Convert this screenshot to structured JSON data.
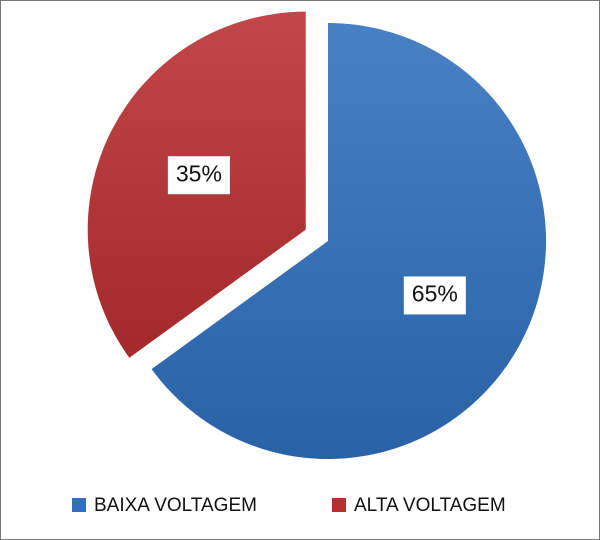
{
  "chart_data": {
    "type": "pie",
    "categories": [
      "BAIXA VOLTAGEM",
      "ALTA VOLTAGEM"
    ],
    "values": [
      65,
      35
    ],
    "value_labels": [
      "65%",
      "35%"
    ],
    "colors": [
      "#2f6fbe",
      "#b92e30"
    ]
  }
}
